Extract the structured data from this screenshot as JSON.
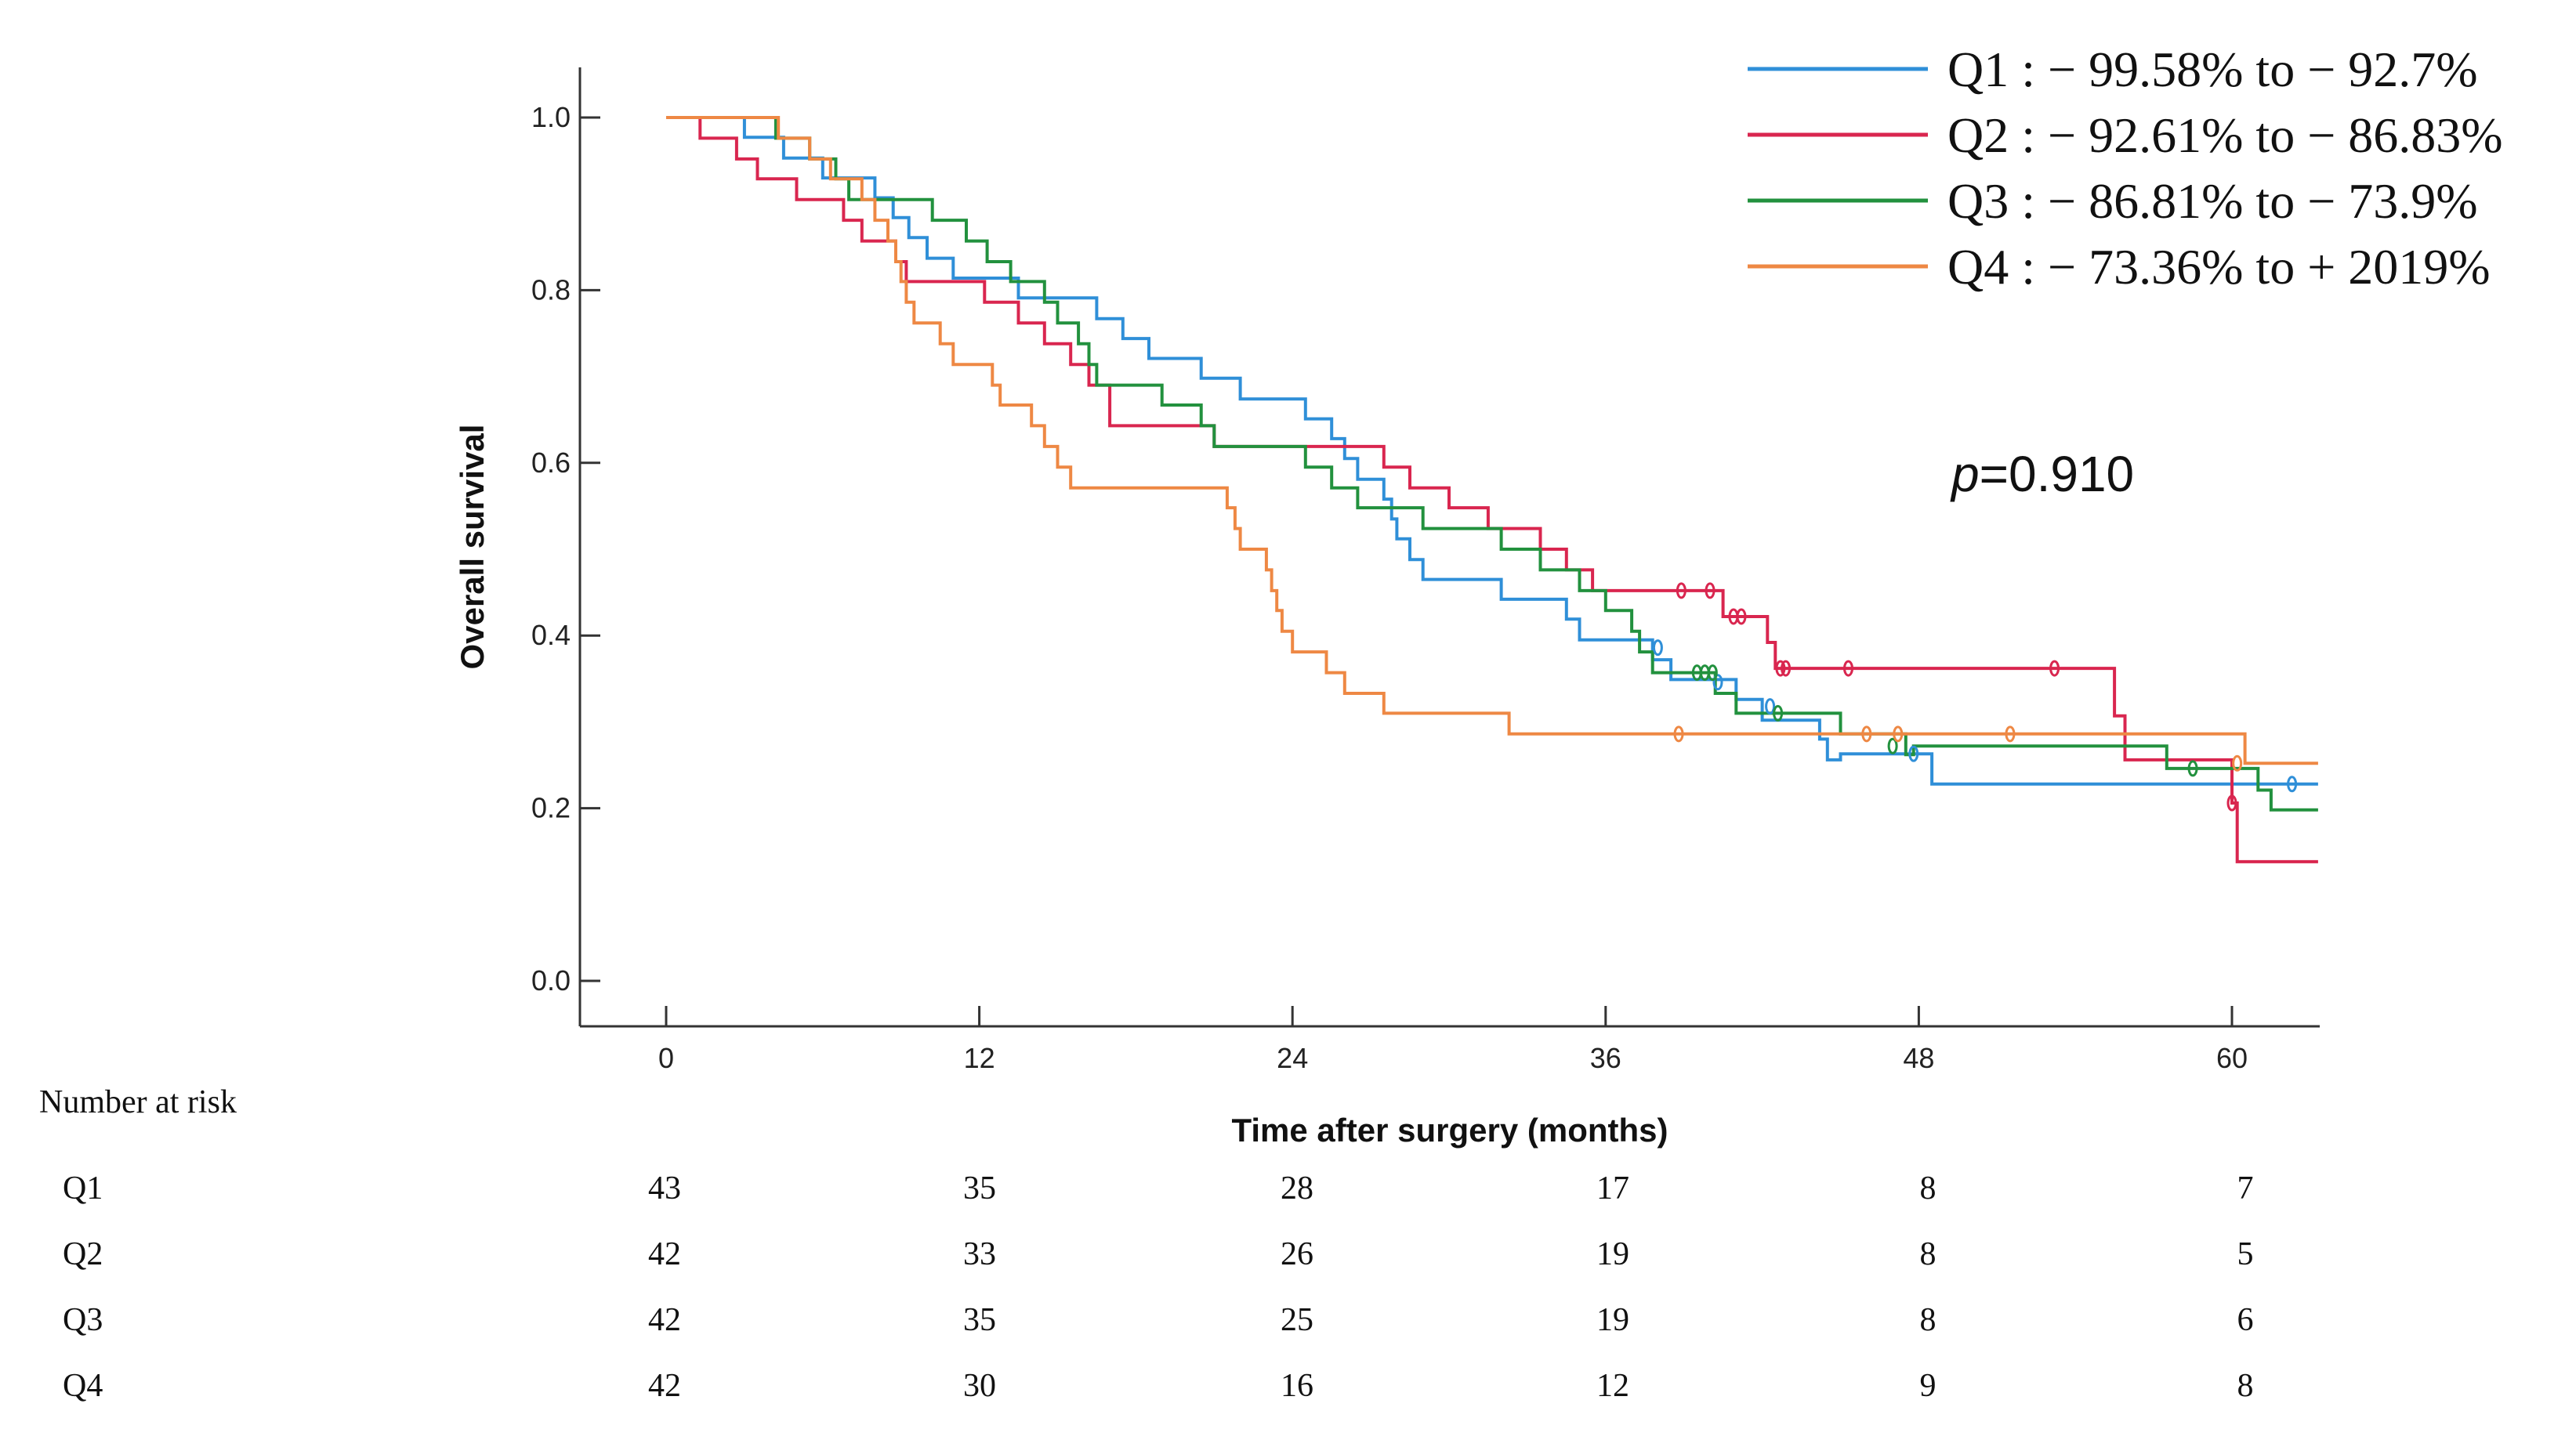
{
  "chart_data": {
    "type": "line",
    "subtype": "kaplan-meier",
    "xlabel": "Time after surgery (months)",
    "ylabel": "Overall survival",
    "xlim": [
      -3,
      63.5
    ],
    "ylim": [
      -0.05,
      1.06
    ],
    "xticks": [
      0,
      12,
      24,
      36,
      48,
      60
    ],
    "xtick_labels": [
      "0",
      "12",
      "24",
      "36",
      "48",
      "60"
    ],
    "yticks": [
      0.0,
      0.2,
      0.4,
      0.6,
      0.8,
      1.0
    ],
    "ytick_labels": [
      "0.0",
      "0.2",
      "0.4",
      "0.6",
      "0.8",
      "1.0"
    ],
    "grid": false,
    "legend_position": "top-right",
    "annotation": {
      "p_symbol": "p",
      "p_text": "=0.910"
    },
    "series": [
      {
        "name": "Q1",
        "label": "Q1 : − 99.58% to − 92.7%",
        "color": "#2f8fd8",
        "steps": [
          [
            0,
            1.0
          ],
          [
            3,
            0.977
          ],
          [
            4.5,
            0.953
          ],
          [
            6,
            0.93
          ],
          [
            8,
            0.907
          ],
          [
            8.7,
            0.884
          ],
          [
            9.3,
            0.861
          ],
          [
            10,
            0.837
          ],
          [
            11,
            0.814
          ],
          [
            13.5,
            0.791
          ],
          [
            16.5,
            0.767
          ],
          [
            17.5,
            0.744
          ],
          [
            18.5,
            0.721
          ],
          [
            20.5,
            0.698
          ],
          [
            22,
            0.674
          ],
          [
            24.5,
            0.651
          ],
          [
            25.5,
            0.628
          ],
          [
            26,
            0.605
          ],
          [
            26.5,
            0.581
          ],
          [
            27.5,
            0.558
          ],
          [
            27.8,
            0.535
          ],
          [
            28,
            0.512
          ],
          [
            28.5,
            0.488
          ],
          [
            29,
            0.465
          ],
          [
            32,
            0.442
          ],
          [
            34.5,
            0.419
          ],
          [
            35,
            0.395
          ],
          [
            37.8,
            0.372
          ],
          [
            38.5,
            0.349
          ],
          [
            41,
            0.326
          ],
          [
            42,
            0.302
          ],
          [
            44.2,
            0.28
          ],
          [
            44.5,
            0.256
          ],
          [
            45,
            0.263
          ],
          [
            48.5,
            0.228
          ],
          [
            63.3,
            0.228
          ]
        ],
        "censors": [
          [
            38,
            0.386
          ],
          [
            40.3,
            0.346
          ],
          [
            42.3,
            0.318
          ],
          [
            47.8,
            0.263
          ],
          [
            62.3,
            0.228
          ]
        ]
      },
      {
        "name": "Q2",
        "label": "Q2 : − 92.61% to − 86.83%",
        "color": "#d9264f",
        "steps": [
          [
            0,
            1.0
          ],
          [
            1.3,
            0.976
          ],
          [
            2.7,
            0.952
          ],
          [
            3.5,
            0.929
          ],
          [
            5,
            0.905
          ],
          [
            6.8,
            0.881
          ],
          [
            7.5,
            0.857
          ],
          [
            8.8,
            0.833
          ],
          [
            9.2,
            0.81
          ],
          [
            12.2,
            0.786
          ],
          [
            13.5,
            0.762
          ],
          [
            14.5,
            0.738
          ],
          [
            15.5,
            0.714
          ],
          [
            16.2,
            0.69
          ],
          [
            17,
            0.643
          ],
          [
            21,
            0.619
          ],
          [
            27.5,
            0.595
          ],
          [
            28.5,
            0.571
          ],
          [
            30,
            0.548
          ],
          [
            31.5,
            0.524
          ],
          [
            33.5,
            0.5
          ],
          [
            34.5,
            0.476
          ],
          [
            35.5,
            0.452
          ],
          [
            40.5,
            0.422
          ],
          [
            42.2,
            0.392
          ],
          [
            42.5,
            0.362
          ],
          [
            55.5,
            0.307
          ],
          [
            55.9,
            0.256
          ],
          [
            60,
            0.206
          ],
          [
            60.2,
            0.138
          ],
          [
            63.3,
            0.138
          ]
        ],
        "censors": [
          [
            38.9,
            0.452
          ],
          [
            40.0,
            0.452
          ],
          [
            40.9,
            0.422
          ],
          [
            41.2,
            0.422
          ],
          [
            42.7,
            0.362
          ],
          [
            42.9,
            0.362
          ],
          [
            45.3,
            0.362
          ],
          [
            53.2,
            0.362
          ],
          [
            60.0,
            0.206
          ]
        ]
      },
      {
        "name": "Q3",
        "label": "Q3 : − 86.81% to − 73.9%",
        "color": "#22913e",
        "steps": [
          [
            0,
            1.0
          ],
          [
            4.2,
            0.976
          ],
          [
            5.5,
            0.952
          ],
          [
            6.5,
            0.929
          ],
          [
            7,
            0.905
          ],
          [
            10.2,
            0.881
          ],
          [
            11.5,
            0.857
          ],
          [
            12.3,
            0.833
          ],
          [
            13.2,
            0.81
          ],
          [
            14.5,
            0.786
          ],
          [
            15,
            0.762
          ],
          [
            15.8,
            0.738
          ],
          [
            16.2,
            0.714
          ],
          [
            16.5,
            0.69
          ],
          [
            19,
            0.667
          ],
          [
            20.5,
            0.643
          ],
          [
            21,
            0.619
          ],
          [
            24.5,
            0.595
          ],
          [
            25.5,
            0.571
          ],
          [
            26.5,
            0.548
          ],
          [
            29,
            0.524
          ],
          [
            32,
            0.5
          ],
          [
            33.5,
            0.476
          ],
          [
            35,
            0.452
          ],
          [
            36,
            0.429
          ],
          [
            37,
            0.405
          ],
          [
            37.3,
            0.381
          ],
          [
            37.8,
            0.357
          ],
          [
            40.2,
            0.333
          ],
          [
            41,
            0.31
          ],
          [
            45,
            0.286
          ],
          [
            47.5,
            0.262
          ],
          [
            47.8,
            0.272
          ],
          [
            57.5,
            0.246
          ],
          [
            61,
            0.221
          ],
          [
            61.5,
            0.198
          ],
          [
            63.3,
            0.198
          ]
        ],
        "censors": [
          [
            39.5,
            0.357
          ],
          [
            39.8,
            0.357
          ],
          [
            40.1,
            0.357
          ],
          [
            42.6,
            0.31
          ],
          [
            47.0,
            0.272
          ],
          [
            58.5,
            0.246
          ]
        ]
      },
      {
        "name": "Q4",
        "label": "Q4 : − 73.36% to + 2019%",
        "color": "#ee8844",
        "steps": [
          [
            0,
            1.0
          ],
          [
            4.3,
            0.976
          ],
          [
            5.5,
            0.952
          ],
          [
            6.3,
            0.929
          ],
          [
            7.5,
            0.905
          ],
          [
            8,
            0.881
          ],
          [
            8.5,
            0.857
          ],
          [
            8.8,
            0.833
          ],
          [
            9,
            0.81
          ],
          [
            9.2,
            0.786
          ],
          [
            9.5,
            0.762
          ],
          [
            10.5,
            0.738
          ],
          [
            11,
            0.714
          ],
          [
            12.5,
            0.69
          ],
          [
            12.8,
            0.667
          ],
          [
            14,
            0.643
          ],
          [
            14.5,
            0.619
          ],
          [
            15,
            0.595
          ],
          [
            15.5,
            0.571
          ],
          [
            21.5,
            0.548
          ],
          [
            21.8,
            0.524
          ],
          [
            22,
            0.5
          ],
          [
            23,
            0.476
          ],
          [
            23.2,
            0.452
          ],
          [
            23.4,
            0.429
          ],
          [
            23.6,
            0.405
          ],
          [
            24,
            0.381
          ],
          [
            25.3,
            0.357
          ],
          [
            26,
            0.333
          ],
          [
            27.5,
            0.31
          ],
          [
            32.3,
            0.286
          ],
          [
            60.5,
            0.252
          ],
          [
            63.3,
            0.252
          ]
        ],
        "censors": [
          [
            38.8,
            0.286
          ],
          [
            46.0,
            0.286
          ],
          [
            47.2,
            0.286
          ],
          [
            51.5,
            0.286
          ],
          [
            60.2,
            0.252
          ]
        ]
      }
    ]
  },
  "risk_table": {
    "title": "Number at risk",
    "times": [
      0,
      12,
      24,
      36,
      48,
      60
    ],
    "rows": [
      {
        "label": "Q1",
        "values": [
          "43",
          "35",
          "28",
          "17",
          "8",
          "7"
        ]
      },
      {
        "label": "Q2",
        "values": [
          "42",
          "33",
          "26",
          "19",
          "8",
          "5"
        ]
      },
      {
        "label": "Q3",
        "values": [
          "42",
          "35",
          "25",
          "19",
          "8",
          "6"
        ]
      },
      {
        "label": "Q4",
        "values": [
          "42",
          "30",
          "16",
          "12",
          "9",
          "8"
        ]
      }
    ]
  }
}
